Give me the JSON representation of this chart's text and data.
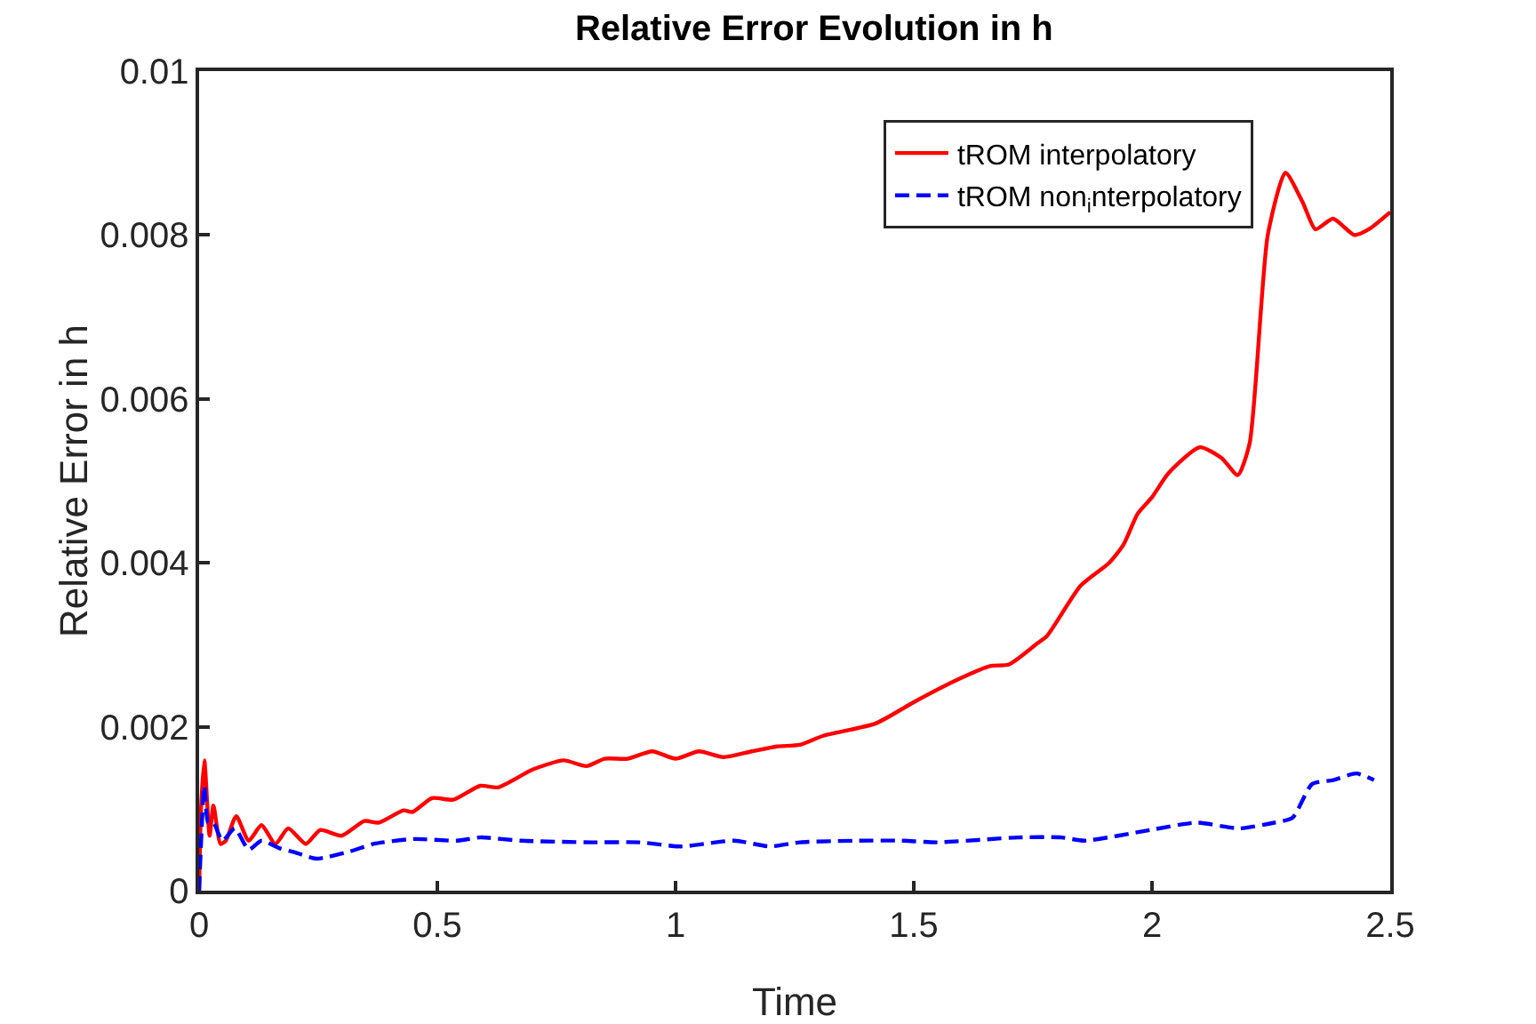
{
  "chart_data": {
    "type": "line",
    "title": "Relative Error Evolution in h",
    "xlabel": "Time",
    "ylabel": "Relative Error in h",
    "xlim": [
      0,
      2.5
    ],
    "xticks": [
      0,
      0.5,
      1,
      1.5,
      2,
      2.5
    ],
    "ylim": [
      0,
      0.01
    ],
    "yticks": [
      0,
      0.002,
      0.004,
      0.006,
      0.008,
      0.01
    ],
    "grid": false,
    "legend": "top right",
    "marker": "none",
    "series": [
      {
        "name": "tROM interpolatory",
        "color": "#ff0000",
        "line_style": "solid",
        "x": [
          0,
          0.004,
          0.011,
          0.022,
          0.03,
          0.045,
          0.056,
          0.078,
          0.104,
          0.131,
          0.16,
          0.187,
          0.224,
          0.254,
          0.299,
          0.347,
          0.377,
          0.429,
          0.448,
          0.489,
          0.534,
          0.59,
          0.627,
          0.701,
          0.765,
          0.813,
          0.851,
          0.899,
          0.951,
          1.0,
          1.049,
          1.101,
          1.16,
          1.213,
          1.261,
          1.31,
          1.42,
          1.5,
          1.59,
          1.66,
          1.7,
          1.76,
          1.78,
          1.85,
          1.91,
          1.94,
          1.97,
          2.0,
          2.034,
          2.1,
          2.146,
          2.18,
          2.205,
          2.243,
          2.28,
          2.317,
          2.343,
          2.38,
          2.425,
          2.455,
          2.5
        ],
        "values": [
          0,
          0.001,
          0.00159,
          0.00067,
          0.00104,
          0.00057,
          0.00061,
          0.00091,
          0.00061,
          0.0008,
          0.00057,
          0.00076,
          0.00057,
          0.00074,
          0.00067,
          0.00085,
          0.00083,
          0.00098,
          0.00096,
          0.00113,
          0.00111,
          0.00128,
          0.00126,
          0.00148,
          0.00159,
          0.00152,
          0.00161,
          0.00161,
          0.0017,
          0.00161,
          0.0017,
          0.00163,
          0.0017,
          0.00176,
          0.00178,
          0.00189,
          0.00204,
          0.0023,
          0.00257,
          0.00274,
          0.00276,
          0.00302,
          0.00311,
          0.00372,
          0.004,
          0.00422,
          0.0046,
          0.0048,
          0.00509,
          0.00541,
          0.00528,
          0.00507,
          0.00546,
          0.008,
          0.00876,
          0.00839,
          0.00807,
          0.0082,
          0.008,
          0.00807,
          0.00828
        ]
      },
      {
        "name": "tROM non$_{i}$nterpolatory",
        "color": "#0000ff",
        "line_style": "dashed",
        "x": [
          0,
          0.011,
          0.019,
          0.03,
          0.049,
          0.075,
          0.104,
          0.131,
          0.168,
          0.205,
          0.246,
          0.317,
          0.366,
          0.45,
          0.541,
          0.59,
          0.675,
          0.825,
          0.925,
          1.011,
          1.123,
          1.198,
          1.261,
          1.384,
          1.474,
          1.549,
          1.72,
          1.81,
          1.858,
          1.996,
          2.093,
          2.183,
          2.257,
          2.295,
          2.336,
          2.38,
          2.429,
          2.466
        ],
        "values": [
          0,
          0.00128,
          0.00083,
          0.00083,
          0.00061,
          0.00076,
          0.0005,
          0.00061,
          0.00052,
          0.00046,
          0.00039,
          0.00048,
          0.00057,
          0.00063,
          0.00061,
          0.00065,
          0.00061,
          0.00059,
          0.00059,
          0.00054,
          0.00061,
          0.00054,
          0.00059,
          0.00061,
          0.00061,
          0.00059,
          0.00065,
          0.00065,
          0.00061,
          0.00074,
          0.00083,
          0.00076,
          0.00083,
          0.00089,
          0.0013,
          0.00135,
          0.00143,
          0.00135
        ]
      }
    ]
  }
}
